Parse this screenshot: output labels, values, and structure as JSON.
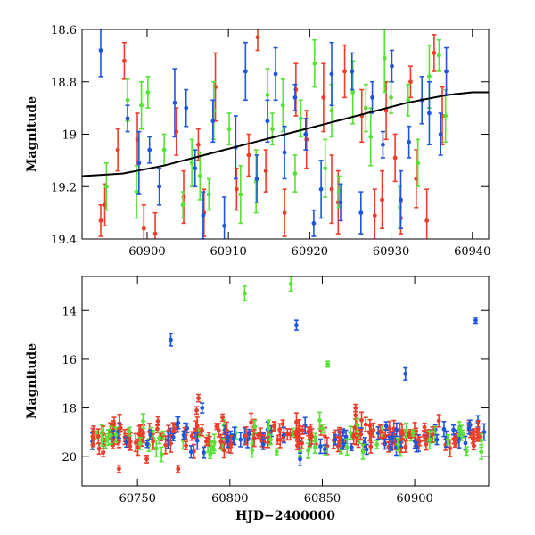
{
  "colors": {
    "red": "#f03c28",
    "green": "#55e335",
    "blue": "#1f55dd",
    "curve": "#000000"
  },
  "chart_data": [
    {
      "type": "scatter",
      "title": "",
      "xlabel": "",
      "ylabel": "Magnitude",
      "xlim": [
        60892,
        60942
      ],
      "ylim": [
        19.4,
        18.6
      ],
      "y_inverted": true,
      "x_ticks": [
        60900,
        60910,
        60920,
        60930,
        60940
      ],
      "x_tick_labels": [
        "60900",
        "60910",
        "60920",
        "60930",
        "60940"
      ],
      "y_ticks": [
        18.6,
        18.8,
        19,
        19.2,
        19.4
      ],
      "y_tick_labels": [
        "18.6",
        "18.8",
        "19",
        "19.2",
        "19.4"
      ],
      "grid": false,
      "model_curve": {
        "x": [
          60892,
          60897,
          60902,
          60907,
          60912,
          60917,
          60922,
          60927,
          60932,
          60937,
          60940,
          60942
        ],
        "y": [
          19.16,
          19.15,
          19.12,
          19.08,
          19.04,
          19.0,
          18.96,
          18.92,
          18.88,
          18.85,
          18.84,
          18.84
        ]
      },
      "series": [
        {
          "color": "red",
          "x": [
            60894.3,
            60894.8,
            60896.4,
            60897.2,
            60898.8,
            60899.6,
            60901.0,
            60903.6,
            60904.5,
            60906.3,
            60907.0,
            60908.4,
            60911.0,
            60912.5,
            60913.6,
            60914.6,
            60916.9,
            60918.3,
            60919.6,
            60921.7,
            60922.7,
            60923.5,
            60924.3,
            60926.4,
            60928.0,
            60928.9,
            60929.4,
            60930.5,
            60931.2,
            60932.4,
            60933.1,
            60934.4,
            60935.3,
            60936.3
          ],
          "y": [
            19.33,
            19.27,
            19.06,
            18.72,
            19.02,
            19.36,
            19.38,
            18.99,
            19.24,
            19.04,
            19.3,
            18.82,
            19.21,
            19.08,
            18.63,
            19.14,
            19.3,
            18.83,
            19.02,
            18.86,
            19.21,
            19.26,
            18.76,
            18.93,
            19.31,
            19.25,
            18.91,
            19.09,
            19.32,
            18.8,
            19.17,
            19.33,
            18.69,
            18.93
          ],
          "err": [
            0.06,
            0.08,
            0.08,
            0.07,
            0.1,
            0.09,
            0.08,
            0.09,
            0.1,
            0.06,
            0.09,
            0.13,
            0.08,
            0.08,
            0.05,
            0.08,
            0.09,
            0.1,
            0.11,
            0.13,
            0.13,
            0.12,
            0.1,
            0.1,
            0.1,
            0.11,
            0.11,
            0.09,
            0.06,
            0.06,
            0.11,
            0.12,
            0.07,
            0.11
          ]
        },
        {
          "color": "green",
          "x": [
            60895.0,
            60897.6,
            60898.7,
            60899.3,
            60900.1,
            60902.1,
            60904.4,
            60905.5,
            60906.5,
            60907.6,
            60908.2,
            60910.1,
            60911.5,
            60913.4,
            60914.8,
            60915.4,
            60916.7,
            60918.2,
            60918.9,
            60920.6,
            60921.9,
            60922.7,
            60923.6,
            60925.3,
            60926.9,
            60927.5,
            60929.2,
            60930.0,
            60931.1,
            60932.1,
            60933.3,
            60934.7,
            60935.9,
            60936.7
          ],
          "y": [
            19.2,
            18.87,
            19.22,
            18.89,
            18.84,
            19.06,
            19.27,
            19.11,
            19.16,
            19.23,
            18.91,
            18.98,
            19.23,
            19.18,
            18.85,
            18.98,
            18.89,
            19.15,
            18.94,
            18.73,
            19.13,
            18.91,
            19.22,
            18.84,
            18.9,
            19.01,
            18.71,
            18.86,
            19.28,
            18.87,
            19.11,
            18.78,
            18.7,
            18.93
          ],
          "err": [
            0.09,
            0.08,
            0.1,
            0.09,
            0.06,
            0.06,
            0.05,
            0.09,
            0.09,
            0.06,
            0.11,
            0.06,
            0.11,
            0.12,
            0.1,
            0.06,
            0.1,
            0.07,
            0.07,
            0.09,
            0.11,
            0.1,
            0.06,
            0.12,
            0.09,
            0.11,
            0.13,
            0.06,
            0.08,
            0.06,
            0.09,
            0.12,
            0.06,
            0.1
          ]
        },
        {
          "color": "blue",
          "x": [
            60894.3,
            60897.6,
            60899.0,
            60900.3,
            60901.5,
            60903.4,
            60904.8,
            60905.9,
            60906.9,
            60908.1,
            60909.5,
            60910.9,
            60912.1,
            60913.5,
            60914.8,
            60915.8,
            60916.9,
            60918.2,
            60919.5,
            60920.5,
            60921.4,
            60922.7,
            60923.8,
            60925.2,
            60926.3,
            60927.7,
            60929.0,
            60930.1,
            60931.2,
            60932.2,
            60933.8,
            60934.7,
            60936.1,
            60936.8
          ],
          "y": [
            18.68,
            18.94,
            19.11,
            19.06,
            19.2,
            18.88,
            18.9,
            19.13,
            19.31,
            18.95,
            19.35,
            19.05,
            18.76,
            19.17,
            18.95,
            18.77,
            19.07,
            18.86,
            19.0,
            19.34,
            19.21,
            18.77,
            19.26,
            18.76,
            19.3,
            18.86,
            19.04,
            18.74,
            19.25,
            19.03,
            18.87,
            18.92,
            19.0,
            18.76
          ],
          "err": [
            0.1,
            0.05,
            0.12,
            0.05,
            0.07,
            0.13,
            0.07,
            0.07,
            0.09,
            0.08,
            0.11,
            0.12,
            0.11,
            0.09,
            0.08,
            0.1,
            0.1,
            0.05,
            0.06,
            0.05,
            0.11,
            0.12,
            0.07,
            0.07,
            0.08,
            0.06,
            0.05,
            0.06,
            0.11,
            0.06,
            0.09,
            0.12,
            0.08,
            0.09
          ]
        }
      ]
    },
    {
      "type": "scatter",
      "title": "",
      "xlabel": "HJD−2400000",
      "ylabel": "Magnitude",
      "xlim": [
        60720,
        60940
      ],
      "ylim": [
        21.2,
        12.6
      ],
      "y_inverted": true,
      "x_ticks": [
        60750,
        60800,
        60850,
        60900
      ],
      "x_tick_labels": [
        "60750",
        "60800",
        "60850",
        "60900"
      ],
      "y_ticks": [
        14,
        16,
        18,
        20
      ],
      "y_tick_labels": [
        "14",
        "16",
        "18",
        "20"
      ],
      "grid": false,
      "series": [
        {
          "color": "blue",
          "x": [
            60768,
            60785,
            60836,
            60895,
            60933,
            60744,
            60757,
            60779,
            60799,
            60818,
            60838,
            60857,
            60874,
            60888,
            60901,
            60912,
            60921,
            60930
          ],
          "y": [
            15.2,
            18.0,
            14.6,
            16.6,
            14.4,
            19.4,
            19.1,
            19.8,
            19.2,
            19.5,
            20.1,
            19.3,
            19.7,
            19.2,
            19.6,
            19.3,
            18.9,
            18.7
          ],
          "err": [
            0.25,
            0.2,
            0.2,
            0.25,
            0.12,
            0.2,
            0.2,
            0.25,
            0.2,
            0.2,
            0.25,
            0.2,
            0.2,
            0.2,
            0.2,
            0.2,
            0.2,
            0.2
          ]
        },
        {
          "color": "green",
          "x": [
            60808,
            60833,
            60853,
            60869,
            60731,
            60763,
            60790,
            60822,
            60846,
            60872,
            60891,
            60918,
            60936
          ],
          "y": [
            13.3,
            12.9,
            16.2,
            18.7,
            19.3,
            19.9,
            19.6,
            19.3,
            19.6,
            19.8,
            19.5,
            19.3,
            19.8
          ],
          "err": [
            0.3,
            0.3,
            0.12,
            0.25,
            0.25,
            0.3,
            0.25,
            0.2,
            0.25,
            0.3,
            0.25,
            0.2,
            0.3
          ]
        }
      ],
      "noise_band": {
        "x_range": [
          60725,
          60938
        ],
        "center_mag": 19.2,
        "spread": 0.45,
        "n_points": 300,
        "colors": [
          "red",
          "red",
          "red",
          "blue",
          "green"
        ],
        "outliers": [
          [
            60783,
            17.6
          ],
          [
            60782,
            18.1
          ],
          [
            60868,
            18.0
          ],
          [
            60868,
            18.3
          ],
          [
            60740,
            20.5
          ],
          [
            60772,
            20.5
          ],
          [
            60755,
            20.1
          ]
        ]
      }
    }
  ]
}
